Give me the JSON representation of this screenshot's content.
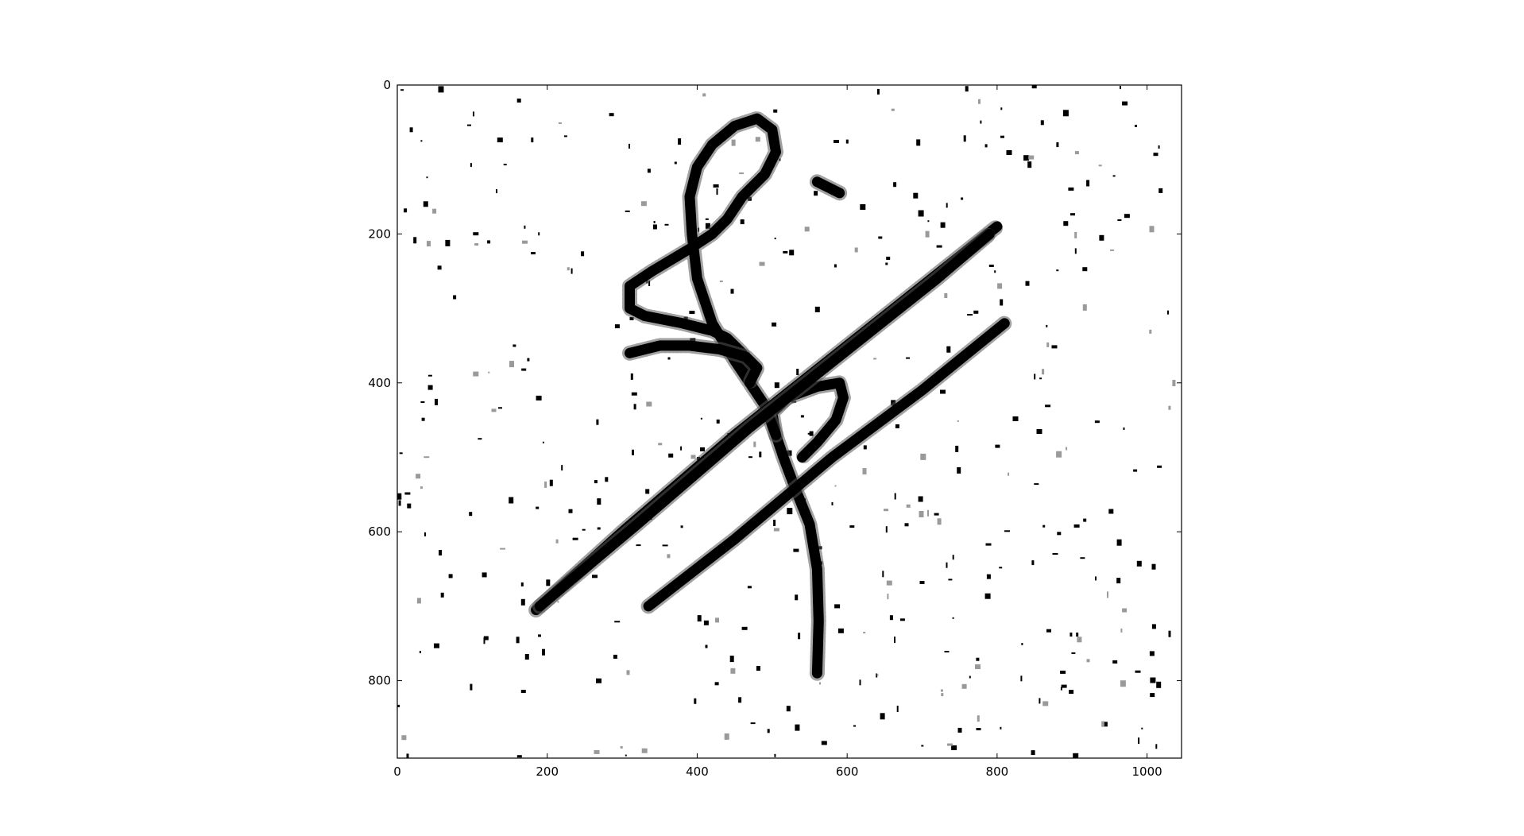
{
  "chart_data": {
    "type": "heatmap",
    "title": "",
    "xlabel": "",
    "ylabel": "",
    "xlim": [
      0,
      1046
    ],
    "ylim": [
      904,
      0
    ],
    "y_inverted": true,
    "grid": false,
    "legend": "none",
    "colormap": "gray",
    "x_ticks": [
      {
        "value": 0,
        "label": "0"
      },
      {
        "value": 200,
        "label": "200"
      },
      {
        "value": 400,
        "label": "400"
      },
      {
        "value": 600,
        "label": "600"
      },
      {
        "value": 800,
        "label": "800"
      },
      {
        "value": 1000,
        "label": "1000"
      }
    ],
    "y_ticks": [
      {
        "value": 0,
        "label": "0"
      },
      {
        "value": 200,
        "label": "200"
      },
      {
        "value": 400,
        "label": "400"
      },
      {
        "value": 600,
        "label": "600"
      },
      {
        "value": 800,
        "label": "800"
      }
    ],
    "strokes": [
      {
        "name": "loop-stroke",
        "points": [
          [
            560,
            790
          ],
          [
            562,
            720
          ],
          [
            560,
            650
          ],
          [
            550,
            590
          ],
          [
            530,
            540
          ],
          [
            515,
            500
          ],
          [
            505,
            470
          ],
          [
            500,
            440
          ],
          [
            520,
            420
          ],
          [
            560,
            405
          ],
          [
            590,
            400
          ],
          [
            595,
            420
          ],
          [
            585,
            450
          ],
          [
            560,
            480
          ],
          [
            540,
            500
          ]
        ]
      },
      {
        "name": "upper-loop",
        "points": [
          [
            505,
            470
          ],
          [
            490,
            430
          ],
          [
            470,
            400
          ],
          [
            460,
            360
          ],
          [
            440,
            340
          ],
          [
            420,
            330
          ],
          [
            380,
            320
          ],
          [
            330,
            310
          ],
          [
            310,
            300
          ],
          [
            310,
            270
          ],
          [
            340,
            250
          ],
          [
            390,
            220
          ],
          [
            420,
            200
          ],
          [
            440,
            180
          ],
          [
            460,
            150
          ],
          [
            490,
            120
          ],
          [
            505,
            90
          ],
          [
            500,
            60
          ],
          [
            480,
            45
          ],
          [
            450,
            55
          ],
          [
            420,
            80
          ],
          [
            400,
            110
          ],
          [
            390,
            150
          ],
          [
            393,
            200
          ],
          [
            400,
            260
          ],
          [
            420,
            320
          ],
          [
            450,
            370
          ],
          [
            470,
            400
          ]
        ]
      },
      {
        "name": "inner-cross",
        "points": [
          [
            310,
            360
          ],
          [
            350,
            350
          ],
          [
            390,
            350
          ],
          [
            430,
            355
          ],
          [
            465,
            365
          ],
          [
            480,
            380
          ],
          [
            470,
            400
          ]
        ]
      },
      {
        "name": "long-diagonal-a",
        "points": [
          [
            185,
            705
          ],
          [
            300,
            600
          ],
          [
            450,
            470
          ],
          [
            600,
            350
          ],
          [
            700,
            270
          ],
          [
            800,
            190
          ]
        ]
      },
      {
        "name": "long-diagonal-b",
        "points": [
          [
            190,
            700
          ],
          [
            320,
            590
          ],
          [
            470,
            460
          ],
          [
            620,
            340
          ],
          [
            720,
            260
          ],
          [
            790,
            200
          ]
        ]
      },
      {
        "name": "short-diagonal",
        "points": [
          [
            335,
            700
          ],
          [
            450,
            610
          ],
          [
            580,
            500
          ],
          [
            700,
            410
          ],
          [
            810,
            320
          ]
        ]
      },
      {
        "name": "dash-mark",
        "points": [
          [
            560,
            130
          ],
          [
            590,
            145
          ]
        ]
      }
    ],
    "noise_seed": 7,
    "noise_count": 420
  }
}
